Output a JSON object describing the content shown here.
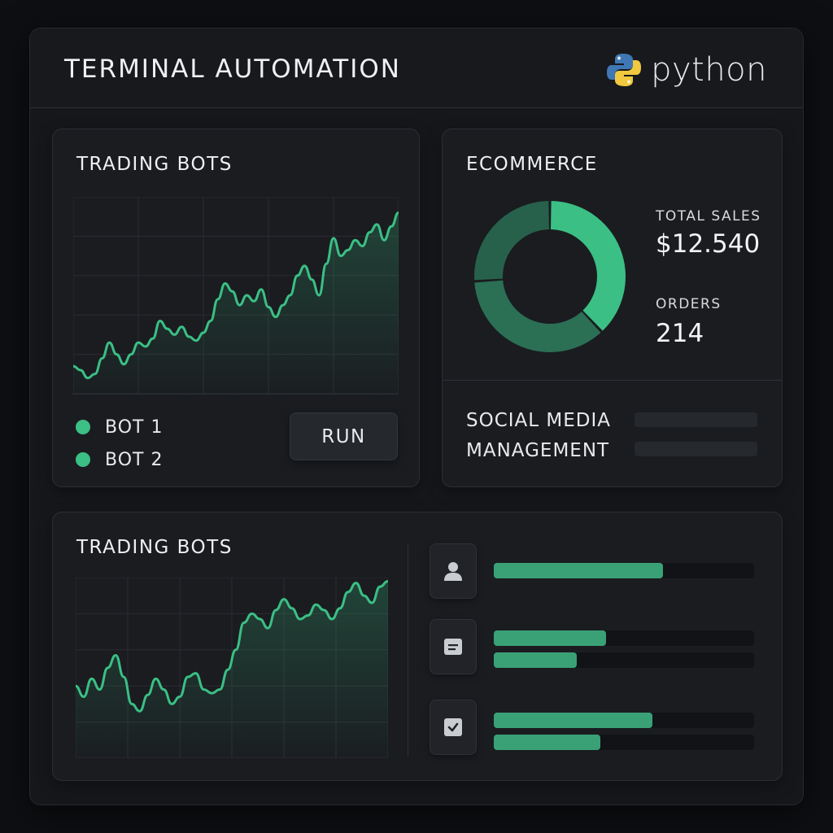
{
  "app": {
    "title": "TERMINAL AUTOMATION",
    "logo_text": "python"
  },
  "trading_top": {
    "title": "TRADING BOTS",
    "legend": [
      "BOT 1",
      "BOT 2"
    ],
    "run_label": "RUN",
    "series": [
      0.14,
      0.12,
      0.08,
      0.1,
      0.18,
      0.26,
      0.2,
      0.15,
      0.2,
      0.26,
      0.24,
      0.28,
      0.37,
      0.33,
      0.3,
      0.34,
      0.29,
      0.27,
      0.31,
      0.37,
      0.48,
      0.56,
      0.52,
      0.45,
      0.5,
      0.47,
      0.53,
      0.44,
      0.39,
      0.45,
      0.5,
      0.6,
      0.65,
      0.58,
      0.5,
      0.66,
      0.79,
      0.7,
      0.73,
      0.78,
      0.75,
      0.82,
      0.86,
      0.78,
      0.85,
      0.92
    ]
  },
  "ecommerce": {
    "title": "ECOMMERCE",
    "total_sales_label": "TOTAL SALES",
    "total_sales_value": "$12.540",
    "orders_label": "ORDERS",
    "orders_value": "214",
    "social_line1": "SOCIAL MEDIA",
    "social_line2": "MANAGEMENT",
    "donut_segments": [
      0.38,
      0.36,
      0.26
    ]
  },
  "trading_bottom": {
    "title": "TRADING BOTS",
    "series": [
      0.4,
      0.34,
      0.44,
      0.38,
      0.5,
      0.57,
      0.45,
      0.3,
      0.26,
      0.35,
      0.44,
      0.38,
      0.3,
      0.34,
      0.45,
      0.47,
      0.38,
      0.36,
      0.38,
      0.49,
      0.6,
      0.75,
      0.8,
      0.77,
      0.72,
      0.82,
      0.88,
      0.83,
      0.77,
      0.79,
      0.85,
      0.82,
      0.77,
      0.83,
      0.92,
      0.97,
      0.9,
      0.86,
      0.95,
      0.98
    ],
    "rows": [
      {
        "icon": "user-icon",
        "bars": [
          0.65
        ]
      },
      {
        "icon": "message-icon",
        "bars": [
          0.43,
          0.32
        ]
      },
      {
        "icon": "checkbox-icon",
        "bars": [
          0.61,
          0.41
        ]
      }
    ]
  },
  "colors": {
    "accent": "#3bbf85",
    "accent_dark": "#2a5e4a",
    "bar_fill": "#3aa177",
    "background": "#0d0f12",
    "card": "#1a1c20"
  }
}
